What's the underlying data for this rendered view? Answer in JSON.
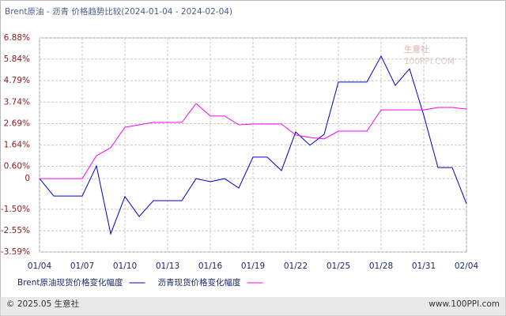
{
  "chart_data": {
    "type": "line",
    "title": "Brent原油 - 沥青 价格趋势比较(2024-01-04 - 2024-02-04)",
    "categories": [
      "01/04",
      null,
      null,
      "01/07",
      null,
      null,
      "01/10",
      null,
      null,
      "01/13",
      null,
      null,
      "01/16",
      null,
      null,
      "01/19",
      null,
      null,
      "01/22",
      null,
      null,
      "01/25",
      null,
      null,
      "01/28",
      null,
      null,
      "01/31",
      null,
      null,
      "02/04"
    ],
    "series": [
      {
        "name": "Brent原油现货价格变化幅度",
        "color": "#0000cc",
        "values": [
          0,
          -0.85,
          -0.85,
          -0.85,
          0.62,
          -2.7,
          -0.88,
          -1.85,
          -1.08,
          -1.08,
          -1.08,
          0.0,
          -0.15,
          0.0,
          -0.46,
          1.05,
          1.05,
          0.39,
          2.28,
          1.63,
          2.17,
          4.72,
          4.72,
          4.72,
          5.99,
          4.56,
          5.37,
          3.09,
          0.54,
          0.54,
          -1.23
        ]
      },
      {
        "name": "沥青现货价格变化幅度",
        "color": "#ff00ff",
        "values": [
          0,
          0,
          0,
          0,
          1.12,
          1.51,
          2.51,
          2.63,
          2.75,
          2.75,
          2.75,
          3.67,
          3.06,
          3.06,
          2.63,
          2.67,
          2.67,
          2.67,
          2.13,
          2.01,
          1.94,
          2.32,
          2.32,
          2.32,
          3.36,
          3.36,
          3.36,
          3.36,
          3.48,
          3.48,
          3.4
        ]
      }
    ],
    "ylim": [
      -3.59,
      6.88
    ],
    "yticks": [
      {
        "value": 6.88,
        "label": "6.88%"
      },
      {
        "value": 5.84,
        "label": "5.84%"
      },
      {
        "value": 4.79,
        "label": "4.79%"
      },
      {
        "value": 3.74,
        "label": "3.74%"
      },
      {
        "value": 2.69,
        "label": "2.69%"
      },
      {
        "value": 1.64,
        "label": "1.64%"
      },
      {
        "value": 0.6,
        "label": "0.60%"
      },
      0,
      {
        "value": -1.5,
        "label": "-1.50%"
      },
      {
        "value": -2.55,
        "label": "-2.55%"
      },
      {
        "value": -3.59,
        "label": "-3.59%"
      }
    ],
    "grid": true,
    "legend": "bottom"
  },
  "watermark": {
    "name": "生意社",
    "site": "100PPI.COM"
  },
  "footer": {
    "copyright": "© 2025.05 生意社",
    "site": "www.100PPI.com"
  }
}
